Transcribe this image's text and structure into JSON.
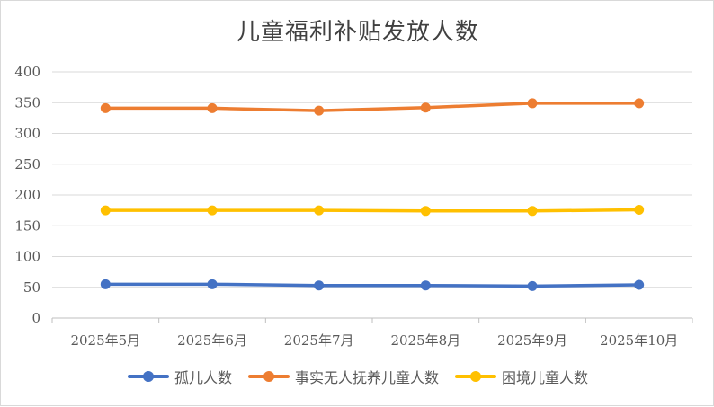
{
  "chart_data": {
    "type": "line",
    "title": "儿童福利补贴发放人数",
    "xlabel": "",
    "ylabel": "",
    "categories": [
      "2025年5月",
      "2025年6月",
      "2025年7月",
      "2025年8月",
      "2025年9月",
      "2025年10月"
    ],
    "ylim": [
      0,
      400
    ],
    "yticks": [
      "0",
      "50",
      "100",
      "150",
      "200",
      "250",
      "300",
      "350",
      "400"
    ],
    "grid": true,
    "legend_position": "bottom",
    "series": [
      {
        "name": "孤儿人数",
        "color": "#4472c4",
        "values": [
          55,
          55,
          53,
          53,
          52,
          54
        ]
      },
      {
        "name": "事实无人抚养儿童人数",
        "color": "#ed7d31",
        "values": [
          341,
          341,
          337,
          342,
          349,
          349
        ]
      },
      {
        "name": "困境儿童人数",
        "color": "#ffc000",
        "values": [
          175,
          175,
          175,
          174,
          174,
          176
        ]
      }
    ]
  }
}
